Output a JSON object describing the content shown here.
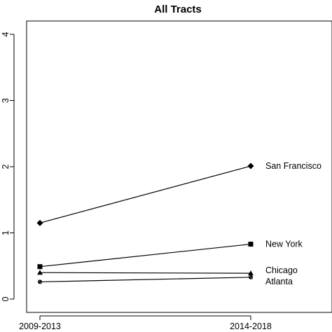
{
  "chart_data": {
    "type": "line",
    "title": "All Tracts",
    "xlabel": "",
    "ylabel": "",
    "categories": [
      "2009-2013",
      "2014-2018"
    ],
    "ylim": [
      0,
      4
    ],
    "yticks": [
      0,
      1,
      2,
      3,
      4
    ],
    "grid": false,
    "series": [
      {
        "name": "San Francisco",
        "values": [
          1.15,
          2.01
        ],
        "marker": "diamond",
        "color": "#000000"
      },
      {
        "name": "New York",
        "values": [
          0.49,
          0.83
        ],
        "marker": "square",
        "color": "#000000"
      },
      {
        "name": "Chicago",
        "values": [
          0.4,
          0.39
        ],
        "marker": "triangle",
        "color": "#000000"
      },
      {
        "name": "Atlanta",
        "values": [
          0.26,
          0.33
        ],
        "marker": "circle-x",
        "color": "#000000"
      }
    ]
  }
}
